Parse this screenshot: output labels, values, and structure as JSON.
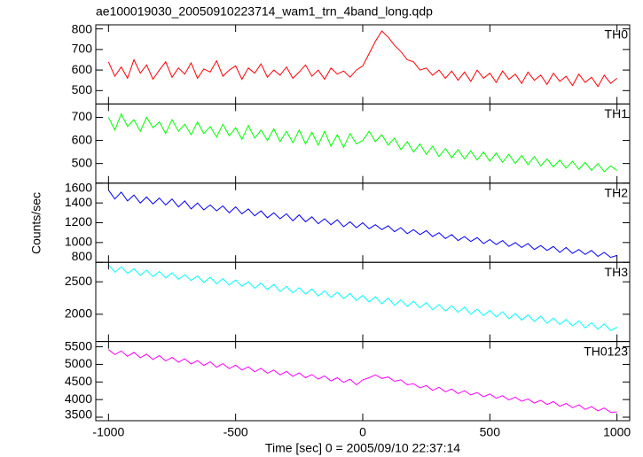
{
  "chart_data": {
    "type": "line",
    "title": "ae100019030_20050910223714_wam1_trn_4band_long.qdp",
    "xlabel": "Time [sec] 0 = 2005/09/10 22:37:14",
    "ylabel": "Counts/sec",
    "xlim": [
      -1050,
      1050
    ],
    "xticks": [
      -1000,
      -500,
      0,
      500,
      1000
    ],
    "x": [
      -1000,
      -975,
      -950,
      -925,
      -900,
      -875,
      -850,
      -825,
      -800,
      -775,
      -750,
      -725,
      -700,
      -675,
      -650,
      -625,
      -600,
      -575,
      -550,
      -525,
      -500,
      -475,
      -450,
      -425,
      -400,
      -375,
      -350,
      -325,
      -300,
      -275,
      -250,
      -225,
      -200,
      -175,
      -150,
      -125,
      -100,
      -75,
      -50,
      -25,
      0,
      25,
      50,
      75,
      100,
      125,
      150,
      175,
      200,
      225,
      250,
      275,
      300,
      325,
      350,
      375,
      400,
      425,
      450,
      475,
      500,
      525,
      550,
      575,
      600,
      625,
      650,
      675,
      700,
      725,
      750,
      775,
      800,
      825,
      850,
      875,
      900,
      925,
      950,
      975,
      1000
    ],
    "series": [
      {
        "name": "TH0",
        "color": "#ff0000",
        "ylim": [
          435,
          820
        ],
        "yticks": [
          500,
          600,
          700,
          800
        ],
        "values": [
          640,
          570,
          615,
          560,
          650,
          585,
          625,
          555,
          600,
          640,
          565,
          610,
          580,
          635,
          560,
          605,
          590,
          645,
          570,
          600,
          620,
          555,
          610,
          585,
          630,
          565,
          600,
          575,
          615,
          560,
          590,
          625,
          570,
          600,
          555,
          610,
          580,
          595,
          565,
          600,
          620,
          680,
          740,
          790,
          760,
          720,
          690,
          650,
          640,
          600,
          610,
          575,
          600,
          560,
          595,
          550,
          590,
          545,
          600,
          560,
          585,
          540,
          595,
          555,
          580,
          535,
          590,
          550,
          575,
          530,
          585,
          545,
          570,
          525,
          580,
          540,
          565,
          520,
          575,
          535,
          560
        ]
      },
      {
        "name": "TH1",
        "color": "#00ff00",
        "ylim": [
          415,
          758
        ],
        "yticks": [
          500,
          600,
          700
        ],
        "values": [
          700,
          645,
          715,
          660,
          690,
          640,
          700,
          655,
          680,
          630,
          690,
          640,
          670,
          625,
          680,
          630,
          660,
          615,
          670,
          620,
          655,
          605,
          665,
          610,
          645,
          600,
          650,
          595,
          640,
          590,
          645,
          585,
          635,
          580,
          640,
          575,
          625,
          570,
          630,
          585,
          600,
          640,
          595,
          625,
          580,
          610,
          560,
          595,
          550,
          585,
          540,
          575,
          530,
          565,
          525,
          560,
          520,
          555,
          515,
          550,
          510,
          545,
          505,
          540,
          500,
          535,
          495,
          530,
          490,
          520,
          485,
          515,
          480,
          510,
          475,
          505,
          470,
          500,
          465,
          490,
          470
        ]
      },
      {
        "name": "TH2",
        "color": "#0000ff",
        "ylim": [
          800,
          1600
        ],
        "yticks": [
          800,
          1000,
          1200,
          1400,
          1600
        ],
        "values": [
          1530,
          1440,
          1510,
          1420,
          1480,
          1400,
          1460,
          1390,
          1450,
          1380,
          1440,
          1360,
          1420,
          1340,
          1400,
          1330,
          1380,
          1320,
          1370,
          1300,
          1360,
          1290,
          1340,
          1270,
          1320,
          1250,
          1300,
          1240,
          1290,
          1220,
          1280,
          1210,
          1260,
          1190,
          1240,
          1180,
          1230,
          1160,
          1210,
          1150,
          1200,
          1140,
          1180,
          1130,
          1170,
          1110,
          1150,
          1090,
          1130,
          1080,
          1120,
          1060,
          1100,
          1040,
          1080,
          1020,
          1060,
          1010,
          1050,
          990,
          1030,
          980,
          1020,
          960,
          1000,
          950,
          990,
          930,
          970,
          920,
          960,
          900,
          950,
          890,
          930,
          880,
          920,
          860,
          900,
          850,
          870
        ]
      },
      {
        "name": "TH3",
        "color": "#00ffff",
        "ylim": [
          1580,
          2800
        ],
        "yticks": [
          2000,
          2500
        ],
        "values": [
          2760,
          2650,
          2730,
          2630,
          2700,
          2600,
          2680,
          2580,
          2660,
          2560,
          2640,
          2540,
          2610,
          2520,
          2590,
          2490,
          2570,
          2470,
          2550,
          2450,
          2530,
          2430,
          2500,
          2400,
          2480,
          2380,
          2460,
          2350,
          2430,
          2330,
          2410,
          2310,
          2390,
          2280,
          2360,
          2260,
          2340,
          2240,
          2320,
          2210,
          2290,
          2190,
          2270,
          2160,
          2250,
          2140,
          2220,
          2120,
          2200,
          2100,
          2180,
          2070,
          2150,
          2050,
          2130,
          2030,
          2110,
          2000,
          2080,
          1980,
          2060,
          1960,
          2040,
          1930,
          2010,
          1910,
          1990,
          1890,
          1970,
          1860,
          1940,
          1840,
          1920,
          1820,
          1900,
          1790,
          1870,
          1770,
          1850,
          1750,
          1800
        ]
      },
      {
        "name": "TH0123",
        "color": "#ff00ff",
        "ylim": [
          3400,
          5650
        ],
        "yticks": [
          3500,
          4000,
          4500,
          5000,
          5500
        ],
        "values": [
          5420,
          5280,
          5380,
          5230,
          5340,
          5190,
          5290,
          5140,
          5250,
          5100,
          5200,
          5060,
          5160,
          5010,
          5110,
          4970,
          5070,
          4920,
          5020,
          4880,
          4980,
          4840,
          4930,
          4790,
          4890,
          4750,
          4840,
          4700,
          4800,
          4660,
          4760,
          4620,
          4710,
          4580,
          4670,
          4530,
          4620,
          4490,
          4580,
          4420,
          4560,
          4620,
          4700,
          4600,
          4640,
          4520,
          4560,
          4420,
          4450,
          4330,
          4400,
          4260,
          4350,
          4220,
          4300,
          4170,
          4250,
          4130,
          4200,
          4080,
          4160,
          4040,
          4110,
          3990,
          4070,
          3950,
          4020,
          3900,
          3980,
          3860,
          3940,
          3810,
          3890,
          3770,
          3850,
          3720,
          3800,
          3680,
          3760,
          3640,
          3650
        ]
      }
    ]
  }
}
